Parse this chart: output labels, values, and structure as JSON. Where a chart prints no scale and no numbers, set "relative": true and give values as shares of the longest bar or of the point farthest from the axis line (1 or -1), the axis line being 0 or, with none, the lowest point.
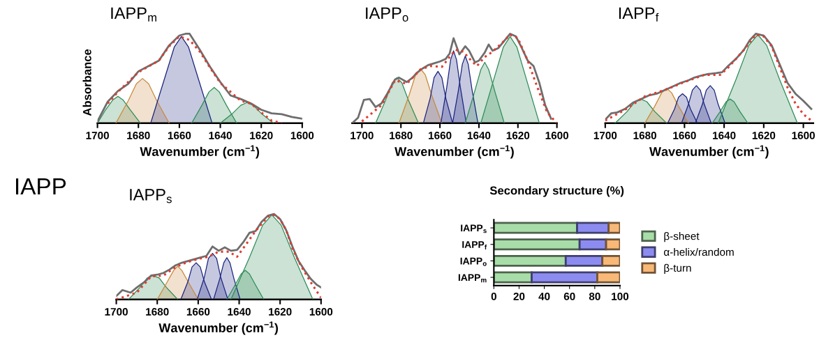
{
  "chart_data": [
    {
      "type": "line",
      "title": "IAPP$_{m}$",
      "xlabel": "Wavenumber (cm$^{−1}$)",
      "ylabel": "Absorbance",
      "relative": true,
      "tick_labels": "x",
      "xlim": [
        1700,
        1600
      ],
      "xticks": [
        1700,
        1680,
        1660,
        1640,
        1620,
        1600
      ],
      "series": [
        {
          "type": "area",
          "color": "#2e8b57",
          "x": [
            1700,
            1696,
            1692.5,
            1690,
            1687.5,
            1684,
            1679
          ],
          "values": [
            0,
            0.15,
            0.26,
            0.3,
            0.26,
            0.15,
            0
          ]
        },
        {
          "type": "area",
          "color": "#c8893a",
          "x": [
            1691,
            1685,
            1681,
            1678,
            1675,
            1671,
            1665
          ],
          "values": [
            0,
            0.25,
            0.44,
            0.5,
            0.44,
            0.25,
            0
          ]
        },
        {
          "type": "area",
          "color": "#1a237e",
          "x": [
            1674,
            1667.5,
            1662.5,
            1659,
            1655.5,
            1650.5,
            1644
          ],
          "values": [
            0,
            0.48,
            0.85,
            0.97,
            0.85,
            0.48,
            0
          ]
        },
        {
          "type": "area",
          "color": "#2e8b57",
          "x": [
            1654,
            1649,
            1645.5,
            1643,
            1640.5,
            1637,
            1632
          ],
          "values": [
            0,
            0.2,
            0.35,
            0.4,
            0.35,
            0.2,
            0
          ]
        },
        {
          "type": "area",
          "color": "#2e8b57",
          "x": [
            1640,
            1634,
            1630,
            1627,
            1624,
            1620,
            1614
          ],
          "values": [
            0,
            0.11,
            0.2,
            0.23,
            0.2,
            0.11,
            0
          ]
        },
        {
          "type": "line",
          "color": "#6e6e6e",
          "x": [
            1700,
            1695,
            1690,
            1685,
            1680,
            1675,
            1670,
            1665,
            1660,
            1657,
            1655,
            1650,
            1645,
            1640,
            1635,
            1630,
            1625,
            1620,
            1615,
            1610,
            1605,
            1600
          ],
          "values": [
            0.02,
            0.24,
            0.36,
            0.44,
            0.58,
            0.64,
            0.7,
            0.87,
            0.98,
            1.0,
            1.0,
            0.82,
            0.63,
            0.46,
            0.31,
            0.27,
            0.22,
            0.15,
            0.11,
            0.1,
            0.07,
            0.05
          ]
        },
        {
          "type": "line",
          "line_style": "dotted",
          "color": "#e03c31",
          "x": [
            1695,
            1690,
            1680,
            1670,
            1665,
            1660,
            1655,
            1650,
            1645,
            1640,
            1630,
            1625,
            1620,
            1615,
            1610
          ],
          "values": [
            0.22,
            0.35,
            0.57,
            0.7,
            0.86,
            0.97,
            0.93,
            0.8,
            0.62,
            0.45,
            0.25,
            0.22,
            0.12,
            0.03,
            0.0
          ]
        }
      ]
    },
    {
      "type": "line",
      "title": "IAPP$_{o}$",
      "xlabel": "Wavenumber (cm$^{−1}$)",
      "relative": true,
      "tick_labels": "x",
      "xlim": [
        1705,
        1600
      ],
      "xticks": [
        1700,
        1680,
        1660,
        1640,
        1620,
        1600
      ],
      "series": [
        {
          "type": "area",
          "color": "#2e8b57",
          "x": [
            1693,
            1688,
            1684.5,
            1682,
            1679.5,
            1676,
            1671
          ],
          "values": [
            0,
            0.25,
            0.45,
            0.51,
            0.45,
            0.25,
            0
          ]
        },
        {
          "type": "area",
          "color": "#c8893a",
          "x": [
            1681,
            1676,
            1672.5,
            1670,
            1667.5,
            1664,
            1659
          ],
          "values": [
            0,
            0.3,
            0.54,
            0.61,
            0.54,
            0.3,
            0
          ]
        },
        {
          "type": "area",
          "color": "#1a237e",
          "x": [
            1668.5,
            1665,
            1663,
            1661,
            1659,
            1657,
            1653.5
          ],
          "values": [
            0,
            0.28,
            0.51,
            0.58,
            0.51,
            0.28,
            0
          ]
        },
        {
          "type": "area",
          "color": "#1a237e",
          "x": [
            1659.5,
            1656.5,
            1654.5,
            1653,
            1651.5,
            1649.5,
            1646.5
          ],
          "values": [
            0,
            0.4,
            0.71,
            0.81,
            0.71,
            0.4,
            0
          ]
        },
        {
          "type": "area",
          "color": "#1a237e",
          "x": [
            1653.5,
            1650.5,
            1648.5,
            1647,
            1645.5,
            1643.5,
            1640.5
          ],
          "values": [
            0,
            0.37,
            0.66,
            0.75,
            0.66,
            0.37,
            0
          ]
        },
        {
          "type": "area",
          "color": "#2e8b57",
          "x": [
            1647,
            1642.5,
            1639,
            1637,
            1635,
            1631.5,
            1627
          ],
          "values": [
            0,
            0.33,
            0.6,
            0.68,
            0.6,
            0.33,
            0
          ]
        },
        {
          "type": "area",
          "color": "#2e8b57",
          "x": [
            1639,
            1632.5,
            1627.5,
            1624,
            1620.5,
            1615.5,
            1609
          ],
          "values": [
            0,
            0.48,
            0.85,
            0.97,
            0.85,
            0.48,
            0
          ]
        },
        {
          "type": "line",
          "color": "#6e6e6e",
          "x": [
            1705,
            1702,
            1699,
            1696,
            1693,
            1690,
            1687,
            1683,
            1681,
            1677,
            1674,
            1672,
            1669,
            1666,
            1663,
            1660,
            1657,
            1655,
            1653,
            1650,
            1647,
            1645,
            1642,
            1640,
            1637,
            1635,
            1633,
            1630,
            1627,
            1624,
            1621,
            1618,
            1615,
            1612,
            1609,
            1606,
            1603
          ],
          "values": [
            0.0,
            0.06,
            0.26,
            0.27,
            0.18,
            0.22,
            0.33,
            0.49,
            0.51,
            0.46,
            0.51,
            0.56,
            0.61,
            0.65,
            0.67,
            0.69,
            0.72,
            0.78,
            0.95,
            0.77,
            0.86,
            0.81,
            0.68,
            0.7,
            0.79,
            0.88,
            0.81,
            0.84,
            0.92,
            1.0,
            0.97,
            0.84,
            0.7,
            0.64,
            0.45,
            0.2,
            0.05
          ]
        },
        {
          "type": "line",
          "line_style": "dotted",
          "color": "#e03c31",
          "x": [
            1700,
            1690,
            1683,
            1677,
            1670,
            1665,
            1659,
            1655,
            1652,
            1648,
            1644,
            1641,
            1637,
            1633,
            1628,
            1624,
            1620,
            1615,
            1610,
            1605,
            1600
          ],
          "values": [
            0.02,
            0.2,
            0.48,
            0.44,
            0.6,
            0.64,
            0.63,
            0.74,
            0.82,
            0.8,
            0.7,
            0.64,
            0.74,
            0.8,
            0.9,
            0.99,
            0.95,
            0.7,
            0.4,
            0.12,
            0.0
          ]
        }
      ]
    },
    {
      "type": "line",
      "title": "IAPP$_{f}$",
      "xlabel": "Wavenumber (cm$^{−1}$)",
      "relative": true,
      "tick_labels": "x",
      "xlim": [
        1700,
        1595
      ],
      "xticks": [
        1700,
        1680,
        1660,
        1640,
        1620,
        1600
      ],
      "series": [
        {
          "type": "area",
          "color": "#2e8b57",
          "x": [
            1695,
            1689,
            1685,
            1682,
            1679,
            1675,
            1669
          ],
          "values": [
            0,
            0.13,
            0.24,
            0.27,
            0.24,
            0.13,
            0
          ]
        },
        {
          "type": "area",
          "color": "#c8893a",
          "x": [
            1680,
            1675,
            1671.5,
            1669,
            1666.5,
            1663,
            1658
          ],
          "values": [
            0,
            0.19,
            0.34,
            0.39,
            0.34,
            0.19,
            0
          ]
        },
        {
          "type": "area",
          "color": "#1a237e",
          "x": [
            1668.5,
            1665,
            1663,
            1661,
            1659,
            1657,
            1653.5
          ],
          "values": [
            0,
            0.16,
            0.29,
            0.33,
            0.29,
            0.16,
            0
          ]
        },
        {
          "type": "area",
          "color": "#1a237e",
          "x": [
            1661.5,
            1658,
            1656,
            1654,
            1652,
            1650,
            1646.5
          ],
          "values": [
            0,
            0.21,
            0.37,
            0.42,
            0.37,
            0.21,
            0
          ]
        },
        {
          "type": "area",
          "color": "#1a237e",
          "x": [
            1654.5,
            1651,
            1649,
            1647,
            1645,
            1643,
            1639.5
          ],
          "values": [
            0,
            0.21,
            0.37,
            0.42,
            0.37,
            0.21,
            0
          ]
        },
        {
          "type": "area",
          "color": "#2e8b57",
          "x": [
            1646,
            1642,
            1639,
            1637,
            1635,
            1632,
            1628
          ],
          "values": [
            0,
            0.13,
            0.24,
            0.27,
            0.24,
            0.13,
            0
          ]
        },
        {
          "type": "area",
          "color": "#2e8b57",
          "x": [
            1643,
            1634,
            1627.5,
            1623,
            1618.5,
            1612,
            1603
          ],
          "values": [
            0,
            0.49,
            0.87,
            0.99,
            0.87,
            0.49,
            0
          ]
        },
        {
          "type": "line",
          "color": "#6e6e6e",
          "x": [
            1700,
            1697,
            1694,
            1690,
            1686,
            1682,
            1678,
            1674,
            1670,
            1666,
            1662,
            1658,
            1655,
            1652,
            1648,
            1644,
            1641,
            1638,
            1634,
            1630,
            1627,
            1624,
            1620,
            1616,
            1612,
            1608,
            1604,
            1600,
            1596
          ],
          "values": [
            0.04,
            0.11,
            0.12,
            0.16,
            0.23,
            0.27,
            0.31,
            0.33,
            0.37,
            0.41,
            0.45,
            0.48,
            0.51,
            0.53,
            0.55,
            0.56,
            0.57,
            0.64,
            0.72,
            0.82,
            0.93,
            1.0,
            0.98,
            0.87,
            0.66,
            0.45,
            0.33,
            0.25,
            0.16
          ]
        },
        {
          "type": "line",
          "line_style": "dotted",
          "color": "#e03c31",
          "x": [
            1700,
            1690,
            1680,
            1670,
            1660,
            1650,
            1642,
            1638,
            1634,
            1630,
            1624,
            1620,
            1616,
            1612,
            1608,
            1604,
            1600,
            1596
          ],
          "values": [
            0.03,
            0.15,
            0.3,
            0.37,
            0.46,
            0.54,
            0.54,
            0.62,
            0.72,
            0.82,
            0.99,
            0.97,
            0.86,
            0.63,
            0.4,
            0.22,
            0.1,
            0.03
          ]
        }
      ]
    },
    {
      "type": "line",
      "title": "IAPP$_{s}$",
      "xlabel": "Wavenumber (cm$^{−1}$)",
      "relative": true,
      "tick_labels": "x",
      "xlim": [
        1700,
        1600
      ],
      "xticks": [
        1700,
        1680,
        1660,
        1640,
        1620,
        1600
      ],
      "annotations": [
        "IAPP"
      ],
      "series": [
        {
          "type": "area",
          "color": "#2e8b57",
          "x": [
            1694,
            1688.5,
            1685,
            1682,
            1679,
            1675.5,
            1670
          ],
          "values": [
            0,
            0.14,
            0.25,
            0.28,
            0.25,
            0.14,
            0
          ]
        },
        {
          "type": "area",
          "color": "#c8893a",
          "x": [
            1680,
            1675.5,
            1672,
            1670,
            1668,
            1664.5,
            1660
          ],
          "values": [
            0,
            0.19,
            0.34,
            0.39,
            0.34,
            0.19,
            0
          ]
        },
        {
          "type": "area",
          "color": "#1a237e",
          "x": [
            1668.5,
            1665,
            1663,
            1661,
            1659,
            1657,
            1653.5
          ],
          "values": [
            0,
            0.21,
            0.38,
            0.43,
            0.38,
            0.21,
            0
          ]
        },
        {
          "type": "area",
          "color": "#1a237e",
          "x": [
            1660.5,
            1657,
            1655,
            1653,
            1651,
            1649,
            1645.5
          ],
          "values": [
            0,
            0.26,
            0.48,
            0.54,
            0.48,
            0.26,
            0
          ]
        },
        {
          "type": "area",
          "color": "#1a237e",
          "x": [
            1652.5,
            1649.5,
            1647.5,
            1646,
            1644.5,
            1642.5,
            1639.5
          ],
          "values": [
            0,
            0.24,
            0.43,
            0.49,
            0.43,
            0.24,
            0
          ]
        },
        {
          "type": "area",
          "color": "#2e8b57",
          "x": [
            1646,
            1642,
            1639,
            1637,
            1635,
            1632,
            1628
          ],
          "values": [
            0,
            0.17,
            0.3,
            0.34,
            0.3,
            0.17,
            0
          ]
        },
        {
          "type": "area",
          "color": "#2e8b57",
          "x": [
            1644,
            1635,
            1628.5,
            1624,
            1619.5,
            1613,
            1604
          ],
          "values": [
            0,
            0.49,
            0.87,
            0.99,
            0.87,
            0.49,
            0
          ]
        },
        {
          "type": "line",
          "color": "#6e6e6e",
          "x": [
            1700,
            1697,
            1693,
            1690,
            1686,
            1683,
            1680,
            1677,
            1674,
            1671,
            1668,
            1665,
            1662,
            1659,
            1656,
            1653,
            1650,
            1647,
            1644,
            1641,
            1638,
            1635,
            1632,
            1629,
            1626,
            1623,
            1620,
            1617,
            1614,
            1611,
            1608,
            1605,
            1602,
            1600
          ],
          "values": [
            0.04,
            0.11,
            0.08,
            0.14,
            0.21,
            0.28,
            0.29,
            0.31,
            0.35,
            0.4,
            0.43,
            0.45,
            0.47,
            0.49,
            0.51,
            0.62,
            0.57,
            0.61,
            0.57,
            0.58,
            0.67,
            0.78,
            0.8,
            0.91,
            0.98,
            1.0,
            0.94,
            0.81,
            0.62,
            0.45,
            0.34,
            0.24,
            0.17,
            0.14
          ]
        },
        {
          "type": "line",
          "line_style": "dotted",
          "color": "#e03c31",
          "x": [
            1700,
            1690,
            1683,
            1677,
            1671,
            1665,
            1659,
            1655,
            1650,
            1645,
            1641,
            1638,
            1632,
            1626,
            1623,
            1620,
            1617,
            1614,
            1610,
            1605,
            1600
          ],
          "values": [
            0.0,
            0.08,
            0.27,
            0.28,
            0.38,
            0.44,
            0.48,
            0.5,
            0.56,
            0.56,
            0.5,
            0.6,
            0.8,
            0.97,
            0.99,
            0.94,
            0.81,
            0.6,
            0.4,
            0.2,
            0.02
          ]
        }
      ]
    },
    {
      "type": "bar",
      "orientation": "horizontal",
      "stacked": true,
      "title": "Secondary structure (%)",
      "categories": [
        "IAPP$_{s}$",
        "IAPP$_{f}$",
        "IAPP$_{o}$",
        "IAPP$_{m}$"
      ],
      "xlim": [
        0,
        100
      ],
      "xticks": [
        0,
        20,
        40,
        60,
        80,
        100
      ],
      "legend": "right",
      "series": [
        {
          "name": "β-sheet",
          "color": "#a8dca8",
          "values": [
            66,
            68,
            57,
            30
          ]
        },
        {
          "name": "α-helix/random",
          "color": "#8c8cf0",
          "values": [
            25,
            21,
            29,
            52
          ]
        },
        {
          "name": "β-turn",
          "color": "#f8b878",
          "values": [
            9,
            11,
            14,
            18
          ]
        }
      ]
    }
  ]
}
